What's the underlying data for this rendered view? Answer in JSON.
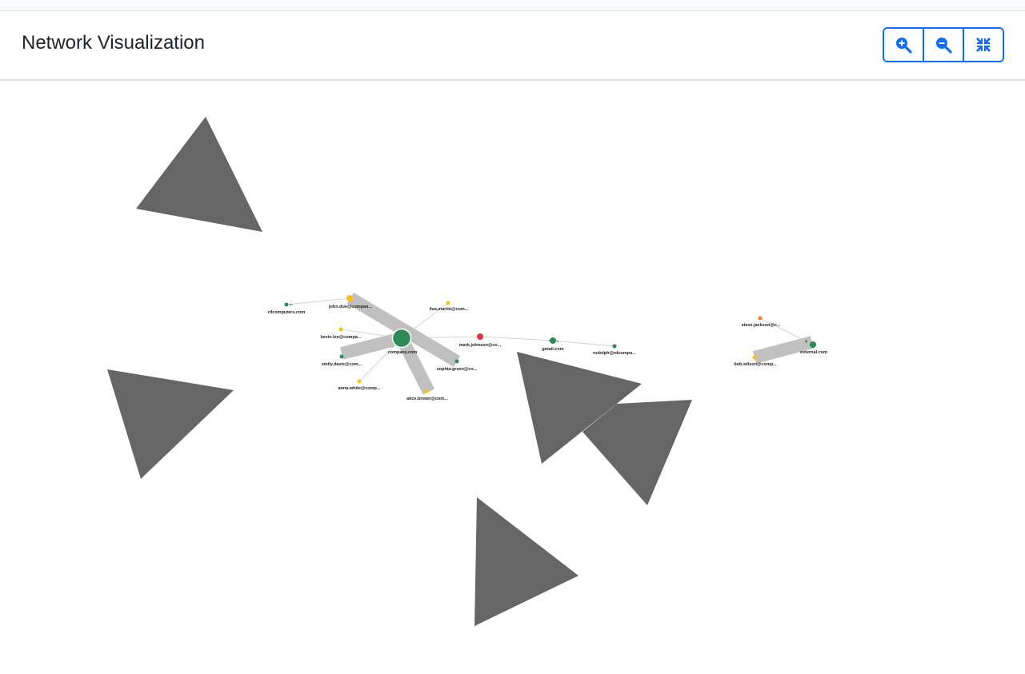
{
  "header": {
    "title": "Network Visualization"
  },
  "toolbar": {
    "zoom_in_icon": "zoom-in-icon",
    "zoom_out_icon": "zoom-out-icon",
    "fit_icon": "compress-icon"
  },
  "colors": {
    "accent": "#0d6efd",
    "node_green": "#2e8b57",
    "node_yellow": "#ffc107",
    "node_red": "#dc3545",
    "node_orange": "#fd7e14",
    "edge_gray": "#c0c0c0",
    "arrow_gray": "#666666"
  },
  "graph": {
    "nodes": [
      {
        "id": "company",
        "label": "company.com"
      },
      {
        "id": "rdcomputers",
        "label": "rdcomputers.com"
      },
      {
        "id": "john",
        "label": "john.doe@compan..."
      },
      {
        "id": "lisa",
        "label": "lisa.martin@com..."
      },
      {
        "id": "kevin",
        "label": "kevin.lee@compa..."
      },
      {
        "id": "emily",
        "label": "emily.davis@com..."
      },
      {
        "id": "anna",
        "label": "anna.white@comp..."
      },
      {
        "id": "alice",
        "label": "alice.brown@com..."
      },
      {
        "id": "sophia",
        "label": "sophia.green@co..."
      },
      {
        "id": "mark",
        "label": "mark.johnson@co..."
      },
      {
        "id": "gmail",
        "label": "gmail.com"
      },
      {
        "id": "rudolph",
        "label": "rudolph@rdcompu..."
      },
      {
        "id": "steve",
        "label": "steve.jackson@c..."
      },
      {
        "id": "external",
        "label": "external.com"
      },
      {
        "id": "bob",
        "label": "bob.wilson@comp..."
      }
    ]
  }
}
